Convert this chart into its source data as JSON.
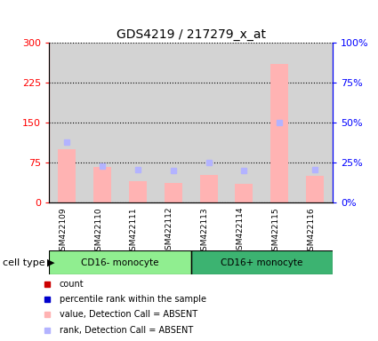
{
  "title": "GDS4219 / 217279_x_at",
  "samples": [
    "GSM422109",
    "GSM422110",
    "GSM422111",
    "GSM422112",
    "GSM422113",
    "GSM422114",
    "GSM422115",
    "GSM422116"
  ],
  "values_absent": [
    100,
    68,
    40,
    38,
    52,
    35,
    260,
    50
  ],
  "ranks_absent": [
    38,
    23,
    21,
    20,
    25,
    20,
    50,
    21
  ],
  "ylim_left": [
    0,
    300
  ],
  "ylim_right": [
    0,
    100
  ],
  "yticks_left": [
    0,
    75,
    150,
    225,
    300
  ],
  "yticks_right": [
    0,
    25,
    50,
    75,
    100
  ],
  "ytick_labels_left": [
    "0",
    "75",
    "150",
    "225",
    "300"
  ],
  "ytick_labels_right": [
    "0%",
    "25%",
    "50%",
    "75%",
    "100%"
  ],
  "bar_color_absent": "#ffb3b3",
  "rank_color_absent": "#b3b3ff",
  "cell_type_groups": [
    {
      "label": "CD16- monocyte",
      "start": 0,
      "end": 3,
      "color": "#90ee90"
    },
    {
      "label": "CD16+ monocyte",
      "start": 4,
      "end": 7,
      "color": "#3cb371"
    }
  ],
  "legend_items": [
    {
      "color": "#cc0000",
      "label": "count"
    },
    {
      "color": "#0000cc",
      "label": "percentile rank within the sample"
    },
    {
      "color": "#ffb3b3",
      "label": "value, Detection Call = ABSENT"
    },
    {
      "color": "#b3b3ff",
      "label": "rank, Detection Call = ABSENT"
    }
  ],
  "cell_type_label": "cell type",
  "bg_color": "#d3d3d3",
  "bar_width": 0.5
}
